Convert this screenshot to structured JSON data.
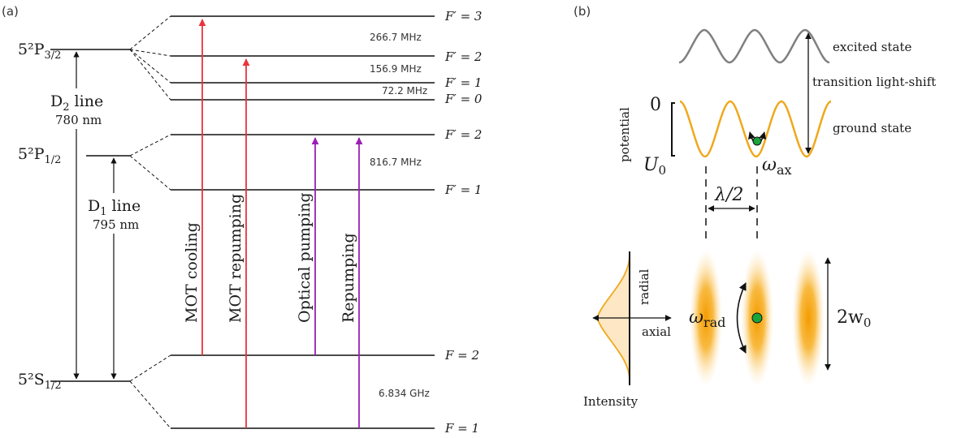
{
  "panel_a": {
    "label": "(a)",
    "states": {
      "p32": "5²P",
      "p32_sub": "3/2",
      "p12": "5²P",
      "p12_sub": "1/2",
      "s12": "5²S",
      "s12_sub": "1/2"
    },
    "lines": {
      "d2_name": "D",
      "d2_sub": "2",
      "d2_suffix": " line",
      "d2_wavelength": "780 nm",
      "d1_name": "D",
      "d1_sub": "1",
      "d1_suffix": " line",
      "d1_wavelength": "795 nm"
    },
    "levels": {
      "p32_f3": "F′ = 3",
      "p32_f2": "F′ = 2",
      "p32_f1": "F′ = 1",
      "p32_f0": "F′ = 0",
      "p12_f2": "F′ = 2",
      "p12_f1": "F′ = 1",
      "s12_f2": "F = 2",
      "s12_f1": "F = 1"
    },
    "splittings": {
      "p32_32": "266.7 MHz",
      "p32_21": "156.9 MHz",
      "p32_10": "72.2 MHz",
      "p12": "816.7 MHz",
      "s12": "6.834 GHz"
    },
    "transitions": {
      "mot_cooling": "MOT cooling",
      "mot_repumping": "MOT repumping",
      "optical_pumping": "Optical pumping",
      "repumping": "Repumping"
    },
    "colors": {
      "cooling": "#e8343b",
      "pumping": "#9b1fb5",
      "level": "#111111"
    }
  },
  "panel_b": {
    "label": "(b)",
    "excited_state": "excited state",
    "ground_state": "ground state",
    "light_shift": "transition light-shift",
    "potential_axis": "potential",
    "zero": "0",
    "u0": "U",
    "u0_sub": "0",
    "omega_ax": "ω",
    "omega_ax_sub": "ax",
    "lambda_half": "λ/2",
    "radial": "radial",
    "axial": "axial",
    "intensity": "Intensity",
    "omega_rad": "ω",
    "omega_rad_sub": "rad",
    "beam_waist": "2w",
    "beam_waist_sub": "0",
    "colors": {
      "excited": "#808080",
      "ground": "#f0a81c",
      "atom": "#1aa53a",
      "lattice": "#f5a300"
    }
  }
}
